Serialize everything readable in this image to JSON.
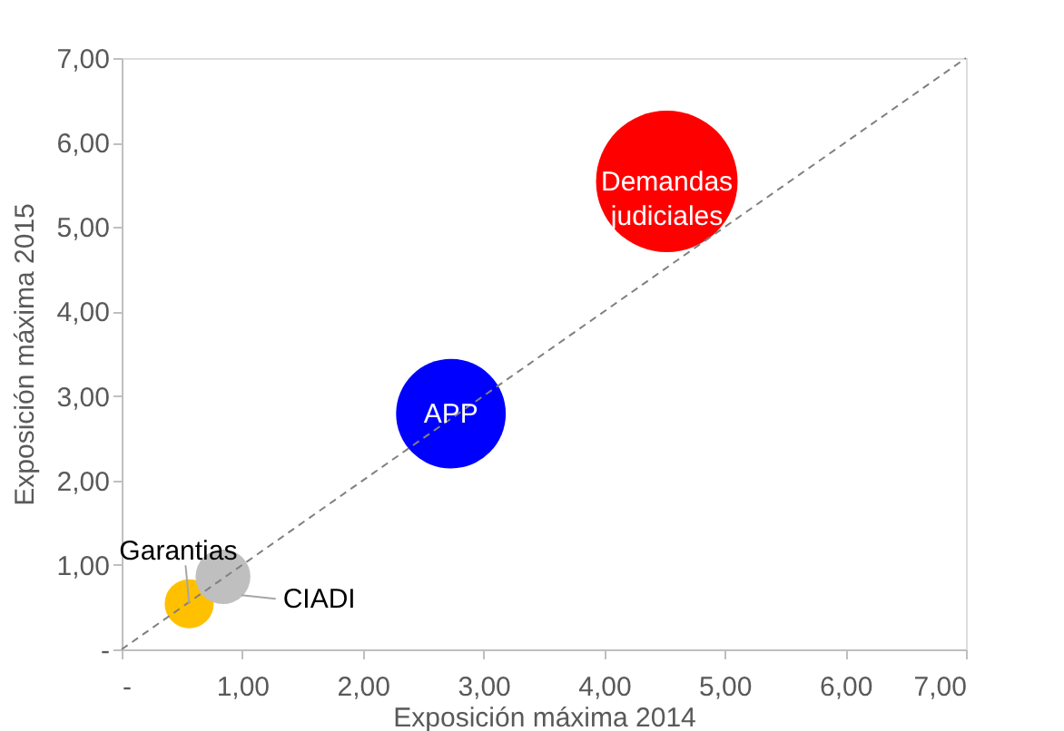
{
  "chart_data": {
    "type": "bubble",
    "xlabel": "Exposición máxima 2014",
    "ylabel": "Exposición máxima 2015",
    "series": [
      {
        "name": "Garantias",
        "color": "#ffc000",
        "x": [
          0.56
        ],
        "values": [
          0.54
        ],
        "sizes": [
          0.12
        ]
      },
      {
        "name": "CIADI",
        "color": "#bfbfbf",
        "x": [
          0.84
        ],
        "values": [
          0.86
        ],
        "sizes": [
          0.15
        ]
      },
      {
        "name": "APP",
        "color": "#0000ff",
        "x": [
          2.73
        ],
        "values": [
          2.79
        ],
        "sizes": [
          0.6
        ]
      },
      {
        "name": "Demandas judiciales",
        "color": "#ff0000",
        "x": [
          4.52
        ],
        "values": [
          5.54
        ],
        "sizes": [
          1
        ]
      },
      {
        "type": "line",
        "color": "#808080",
        "line_style": "dashed",
        "x": [
          0,
          7
        ],
        "values": [
          0,
          7
        ]
      }
    ],
    "xlim": [
      0,
      7
    ],
    "ylim": [
      0,
      7
    ],
    "xticks": [
      {
        "value": 0,
        "label": "-"
      },
      {
        "value": 1,
        "label": "1,00"
      },
      {
        "value": 2,
        "label": "2,00"
      },
      {
        "value": 3,
        "label": "3,00"
      },
      {
        "value": 4,
        "label": "4,00"
      },
      {
        "value": 5,
        "label": "5,00"
      },
      {
        "value": 6,
        "label": "6,00"
      },
      {
        "value": 7,
        "label": "7,00"
      }
    ],
    "yticks": [
      {
        "value": 0,
        "label": "-"
      },
      {
        "value": 1,
        "label": "1,00"
      },
      {
        "value": 2,
        "label": "2,00"
      },
      {
        "value": 3,
        "label": "3,00"
      },
      {
        "value": 4,
        "label": "4,00"
      },
      {
        "value": 5,
        "label": "5,00"
      },
      {
        "value": 6,
        "label": "6,00"
      },
      {
        "value": 7,
        "label": "7,00"
      }
    ],
    "grid": false,
    "legend": false
  }
}
